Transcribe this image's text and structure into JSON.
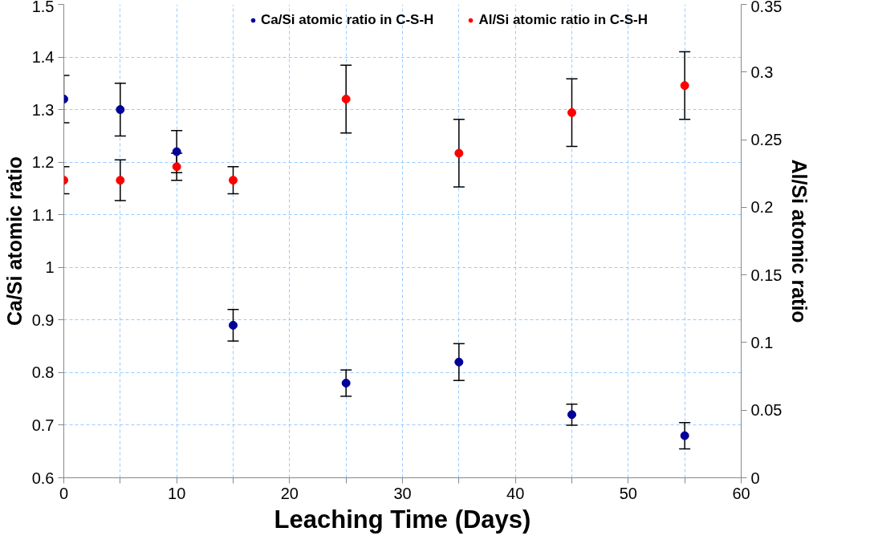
{
  "chart_data": {
    "type": "scatter",
    "xlabel": "Leaching Time (Days)",
    "ylabel": "Ca/Si atomic ratio",
    "y2label": "Al/Si atomic ratio",
    "x": [
      0,
      5,
      10,
      15,
      25,
      35,
      45,
      55
    ],
    "series": [
      {
        "name": "Ca/Si atomic ratio in C-S-H",
        "color": "#000099",
        "values": [
          1.32,
          1.3,
          1.22,
          0.89,
          0.78,
          0.82,
          0.72,
          0.68
        ],
        "errors": [
          [
            1.275,
            1.365
          ],
          [
            1.25,
            1.35
          ],
          [
            1.18,
            1.26
          ],
          [
            0.86,
            0.92
          ],
          [
            0.755,
            0.805
          ],
          [
            0.785,
            0.855
          ],
          [
            0.7,
            0.74
          ],
          [
            0.655,
            0.705
          ]
        ]
      },
      {
        "name": "Al/Si atomic ratio in C-S-H",
        "color": "#ff0000",
        "axis": "y2",
        "values": [
          0.22,
          0.22,
          0.23,
          0.22,
          0.28,
          0.24,
          0.27,
          0.29
        ],
        "errors": [
          [
            0.21,
            0.23
          ],
          [
            0.205,
            0.235
          ],
          [
            0.22,
            0.24
          ],
          [
            0.21,
            0.23
          ],
          [
            0.255,
            0.305
          ],
          [
            0.215,
            0.265
          ],
          [
            0.245,
            0.295
          ],
          [
            0.265,
            0.315
          ]
        ]
      }
    ],
    "xlim": [
      0,
      60
    ],
    "xticks": [
      0,
      {
        "value": 5,
        "label": null
      },
      10,
      {
        "value": 15,
        "label": null
      },
      20,
      {
        "value": 25,
        "label": null
      },
      30,
      {
        "value": 35,
        "label": null
      },
      40,
      {
        "value": 45,
        "label": null
      },
      50,
      {
        "value": 55,
        "label": null
      },
      60
    ],
    "ylim": [
      0.6,
      1.5
    ],
    "yticks": [
      0.6,
      0.7,
      0.8,
      0.9,
      1,
      1.1,
      1.2,
      1.3,
      1.4,
      1.5
    ],
    "y2lim": [
      0,
      0.35
    ],
    "y2ticks": [
      0,
      0.05,
      0.1,
      0.15,
      0.2,
      0.25,
      0.3,
      0.35
    ],
    "grid": true,
    "legend": "top",
    "marker": "circle"
  }
}
